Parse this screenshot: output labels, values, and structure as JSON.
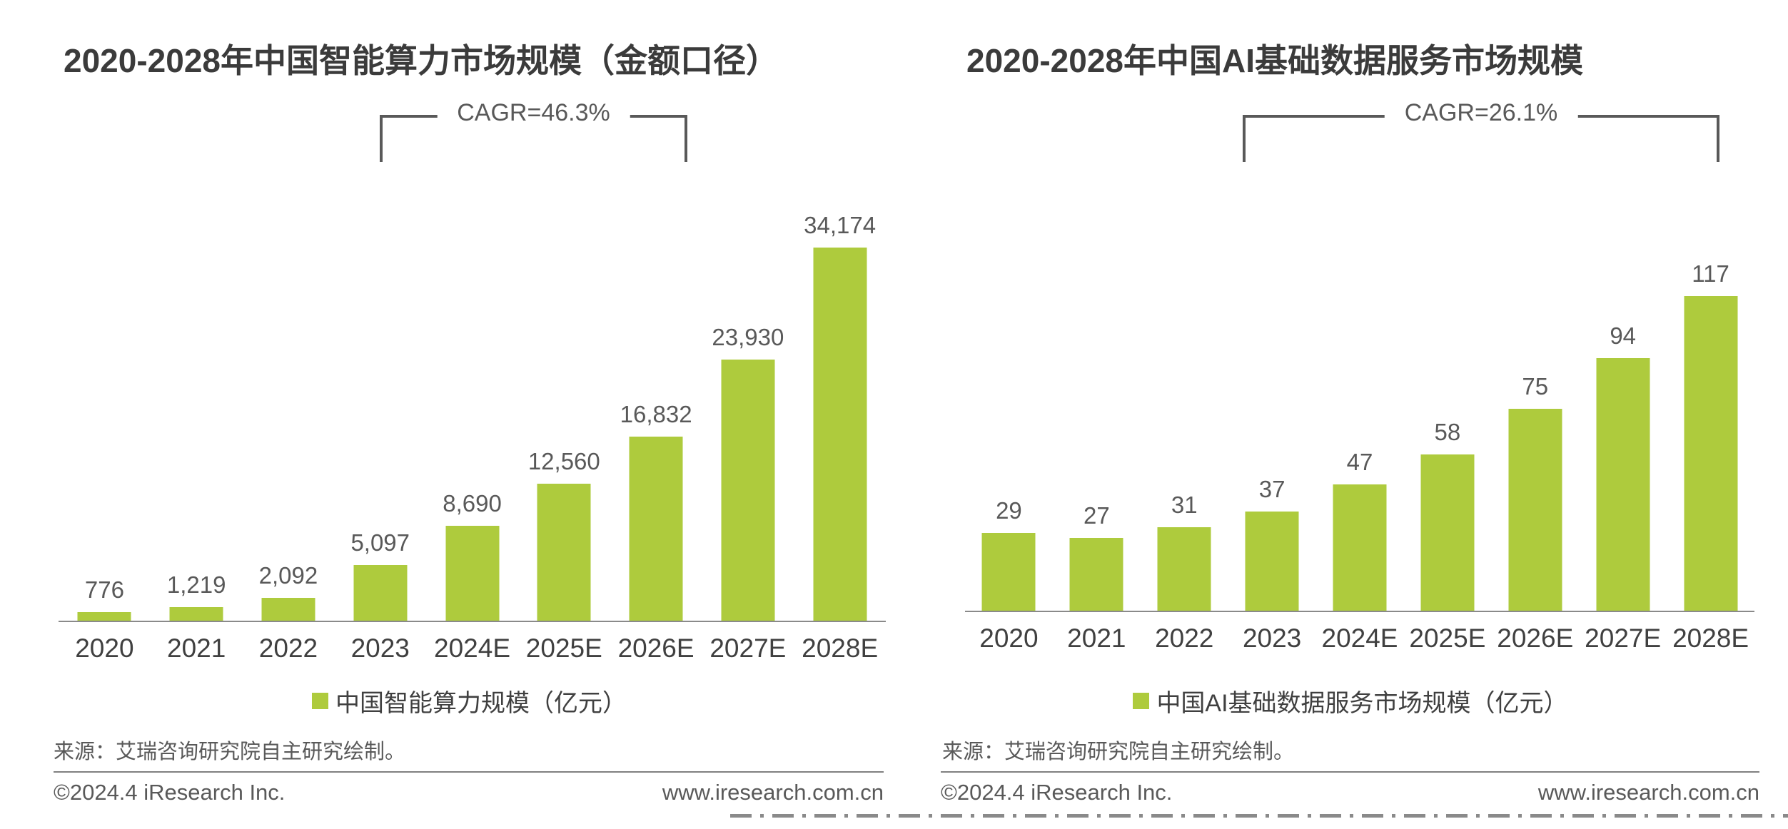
{
  "accent_color": "#aecb3d",
  "line_color": "#595959",
  "chart_data": [
    {
      "type": "bar",
      "title": "2020-2028年中国智能算力市场规模（金额口径）",
      "cagr_label": "CAGR=46.3%",
      "categories": [
        "2020",
        "2021",
        "2022",
        "2023",
        "2024E",
        "2025E",
        "2026E",
        "2027E",
        "2028E"
      ],
      "values": [
        776,
        1219,
        2092,
        5097,
        8690,
        12560,
        16832,
        23930,
        34174
      ],
      "value_labels": [
        "776",
        "1,219",
        "2,092",
        "5,097",
        "8,690",
        "12,560",
        "16,832",
        "23,930",
        "34,174"
      ],
      "legend": "中国智能算力规模（亿元）",
      "legend_position": "bottom-center",
      "xlabel": "",
      "ylabel": "",
      "ylim": [
        0,
        34174
      ],
      "grid": false,
      "bar_color": "#aecb3d",
      "source": "来源：艾瑞咨询研究院自主研究绘制。",
      "footer_left": "©2024.4 iResearch Inc.",
      "footer_right": "www.iresearch.com.cn"
    },
    {
      "type": "bar",
      "title": "2020-2028年中国AI基础数据服务市场规模",
      "cagr_label": "CAGR=26.1%",
      "categories": [
        "2020",
        "2021",
        "2022",
        "2023",
        "2024E",
        "2025E",
        "2026E",
        "2027E",
        "2028E"
      ],
      "values": [
        29,
        27,
        31,
        37,
        47,
        58,
        75,
        94,
        117
      ],
      "value_labels": [
        "29",
        "27",
        "31",
        "37",
        "47",
        "58",
        "75",
        "94",
        "117"
      ],
      "legend": "中国AI基础数据服务市场规模（亿元）",
      "legend_position": "bottom-center",
      "xlabel": "",
      "ylabel": "",
      "ylim": [
        0,
        117
      ],
      "grid": false,
      "bar_color": "#aecb3d",
      "source": "来源：艾瑞咨询研究院自主研究绘制。",
      "footer_left": "©2024.4 iResearch Inc.",
      "footer_right": "www.iresearch.com.cn"
    }
  ]
}
